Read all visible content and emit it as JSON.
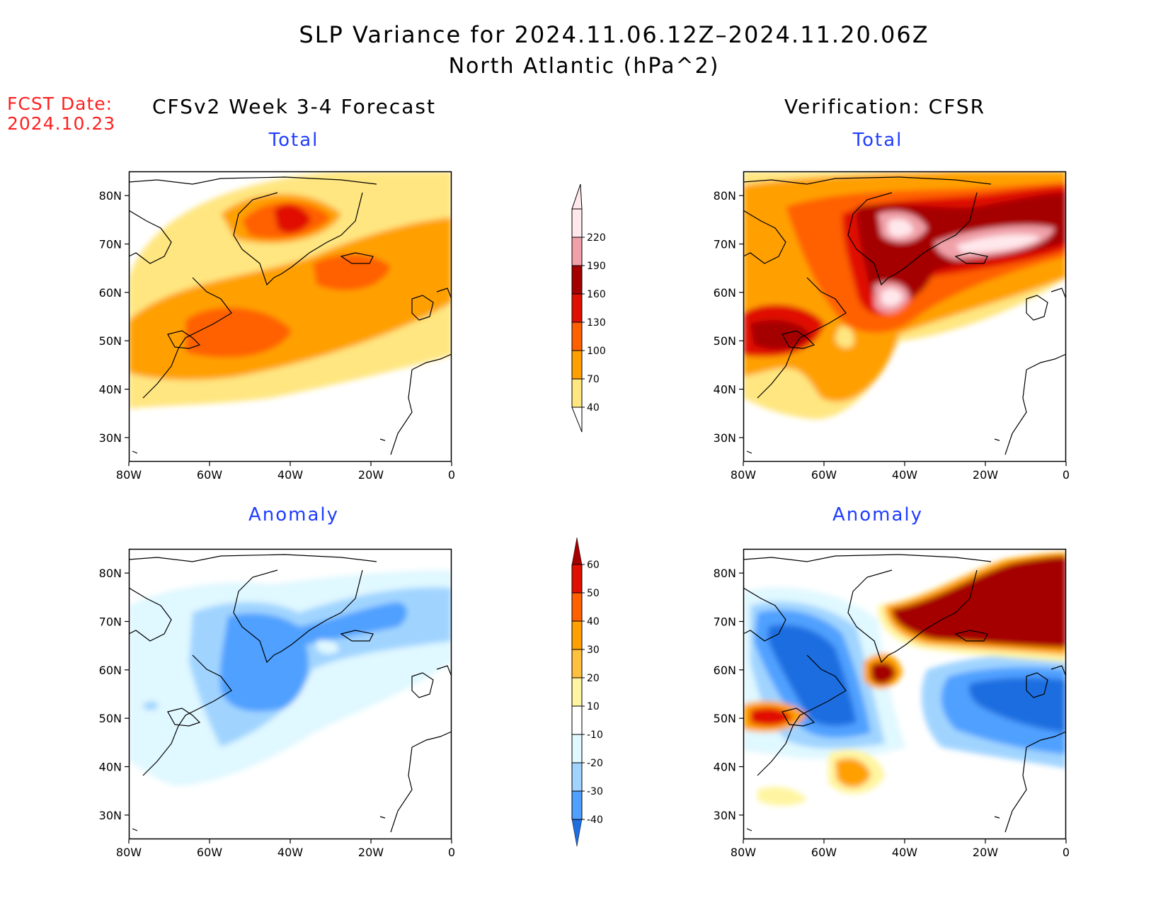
{
  "title": {
    "line1": "SLP Variance for 2024.11.06.12Z–2024.11.20.06Z",
    "line2": "North Atlantic (hPa^2)"
  },
  "fcst_date": {
    "label": "FCST Date:",
    "value": "2024.10.23"
  },
  "columns": {
    "left_header": "CFSv2 Week 3-4 Forecast",
    "right_header": "Verification: CFSR"
  },
  "panels": {
    "fc_total_title": "Total",
    "vr_total_title": "Total",
    "fc_anom_title": "Anomaly",
    "vr_anom_title": "Anomaly"
  },
  "axes": {
    "lat_labels": [
      "80N",
      "70N",
      "60N",
      "50N",
      "40N",
      "30N"
    ],
    "lon_labels": [
      "80W",
      "60W",
      "40W",
      "20W",
      "0"
    ],
    "lat_range": [
      25,
      85
    ],
    "lon_range": [
      -80,
      0
    ]
  },
  "colorbars": {
    "total": {
      "levels": [
        "40",
        "70",
        "100",
        "130",
        "160",
        "190",
        "220"
      ],
      "colors": [
        "#ffe680",
        "#ffa000",
        "#ff6000",
        "#e01000",
        "#a50000",
        "#f0a0a8",
        "#ffe8ec"
      ]
    },
    "anomaly": {
      "levels": [
        "60",
        "50",
        "40",
        "30",
        "20",
        "10",
        "-10",
        "-20",
        "-30",
        "-40"
      ],
      "colors": [
        "#a50000",
        "#e01000",
        "#ff6000",
        "#ffa000",
        "#ffc040",
        "#fff5a0",
        "#ffffff",
        "#e0f8ff",
        "#a0d4ff",
        "#50a0ff",
        "#1e6ee0"
      ]
    }
  },
  "colors": {
    "title_blue": "#1f3dff",
    "fcst_red": "#ff2020"
  }
}
